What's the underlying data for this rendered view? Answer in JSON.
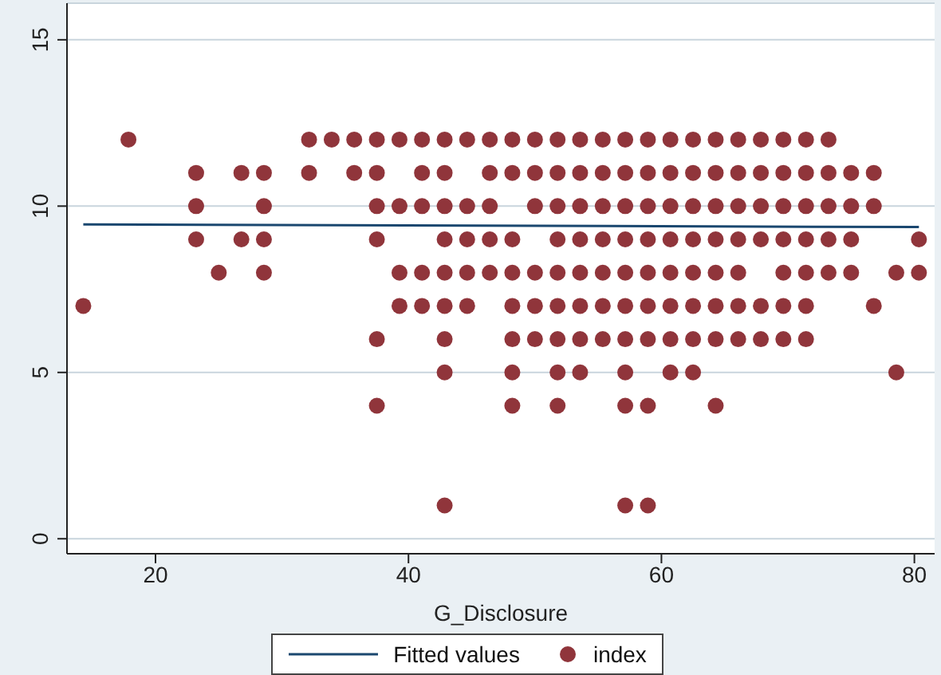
{
  "chart_data": {
    "type": "scatter",
    "xlabel": "G_Disclosure",
    "xlim": [
      13,
      81.6
    ],
    "xticks": [
      20,
      40,
      60,
      80
    ],
    "ylim": [
      -0.45,
      16.1
    ],
    "yticks": [
      0,
      5,
      10,
      15
    ],
    "grid": "y",
    "legend": "bottom",
    "series": [
      {
        "name": "Fitted values",
        "type": "line",
        "color": "#1a476f",
        "x": [
          14.29,
          80.36
        ],
        "values": [
          9.45,
          9.37
        ]
      },
      {
        "name": "index",
        "color": "#90353b",
        "marker": "circle",
        "x": [
          14.29,
          17.86,
          23.21,
          23.21,
          23.21,
          25,
          26.79,
          26.79,
          28.57,
          28.57,
          28.57,
          28.57,
          32.14,
          32.14,
          33.93,
          35.71,
          35.71,
          37.5,
          37.5,
          37.5,
          37.5,
          37.5,
          37.5,
          39.29,
          39.29,
          39.29,
          39.29,
          41.07,
          41.07,
          41.07,
          41.07,
          41.07,
          42.86,
          42.86,
          42.86,
          42.86,
          42.86,
          42.86,
          42.86,
          42.86,
          42.86,
          44.64,
          44.64,
          44.64,
          44.64,
          44.64,
          46.43,
          46.43,
          46.43,
          46.43,
          46.43,
          48.21,
          48.21,
          48.21,
          48.21,
          48.21,
          48.21,
          48.21,
          48.21,
          50,
          50,
          50,
          50,
          50,
          50,
          51.79,
          51.79,
          51.79,
          51.79,
          51.79,
          51.79,
          51.79,
          51.79,
          51.79,
          53.57,
          53.57,
          53.57,
          53.57,
          53.57,
          53.57,
          53.57,
          53.57,
          55.36,
          55.36,
          55.36,
          55.36,
          55.36,
          55.36,
          55.36,
          57.14,
          57.14,
          57.14,
          57.14,
          57.14,
          57.14,
          57.14,
          57.14,
          57.14,
          57.14,
          58.93,
          58.93,
          58.93,
          58.93,
          58.93,
          58.93,
          58.93,
          58.93,
          58.93,
          60.71,
          60.71,
          60.71,
          60.71,
          60.71,
          60.71,
          60.71,
          60.71,
          62.5,
          62.5,
          62.5,
          62.5,
          62.5,
          62.5,
          62.5,
          62.5,
          64.29,
          64.29,
          64.29,
          64.29,
          64.29,
          64.29,
          64.29,
          64.29,
          66.07,
          66.07,
          66.07,
          66.07,
          66.07,
          66.07,
          66.07,
          67.86,
          67.86,
          67.86,
          67.86,
          67.86,
          67.86,
          69.64,
          69.64,
          69.64,
          69.64,
          69.64,
          69.64,
          69.64,
          71.43,
          71.43,
          71.43,
          71.43,
          71.43,
          71.43,
          71.43,
          73.21,
          73.21,
          73.21,
          73.21,
          73.21,
          75,
          75,
          75,
          75,
          76.79,
          76.79,
          76.79,
          78.57,
          78.57,
          80.36,
          80.36
        ],
        "values": [
          7,
          12,
          11,
          10,
          9,
          8,
          11,
          9,
          11,
          10,
          9,
          8,
          12,
          11,
          12,
          12,
          11,
          12,
          11,
          10,
          9,
          6,
          4,
          12,
          10,
          8,
          7,
          12,
          11,
          10,
          8,
          7,
          12,
          11,
          10,
          9,
          8,
          7,
          6,
          5,
          1,
          12,
          10,
          9,
          8,
          7,
          12,
          11,
          10,
          9,
          8,
          12,
          11,
          9,
          8,
          7,
          6,
          5,
          4,
          12,
          11,
          10,
          8,
          7,
          6,
          12,
          11,
          10,
          9,
          8,
          7,
          6,
          5,
          4,
          12,
          11,
          10,
          9,
          8,
          7,
          6,
          5,
          12,
          11,
          10,
          9,
          8,
          7,
          6,
          12,
          11,
          10,
          9,
          8,
          7,
          6,
          5,
          4,
          1,
          12,
          11,
          10,
          9,
          8,
          7,
          6,
          4,
          1,
          12,
          11,
          10,
          9,
          8,
          7,
          6,
          5,
          12,
          11,
          10,
          9,
          8,
          7,
          6,
          5,
          12,
          11,
          10,
          9,
          8,
          7,
          6,
          4,
          12,
          11,
          10,
          9,
          8,
          7,
          6,
          12,
          11,
          10,
          9,
          7,
          6,
          12,
          11,
          10,
          9,
          8,
          7,
          6,
          12,
          11,
          10,
          9,
          8,
          7,
          6,
          12,
          11,
          10,
          9,
          8,
          11,
          10,
          9,
          8,
          11,
          10,
          7,
          8,
          5,
          9,
          8
        ]
      }
    ]
  }
}
